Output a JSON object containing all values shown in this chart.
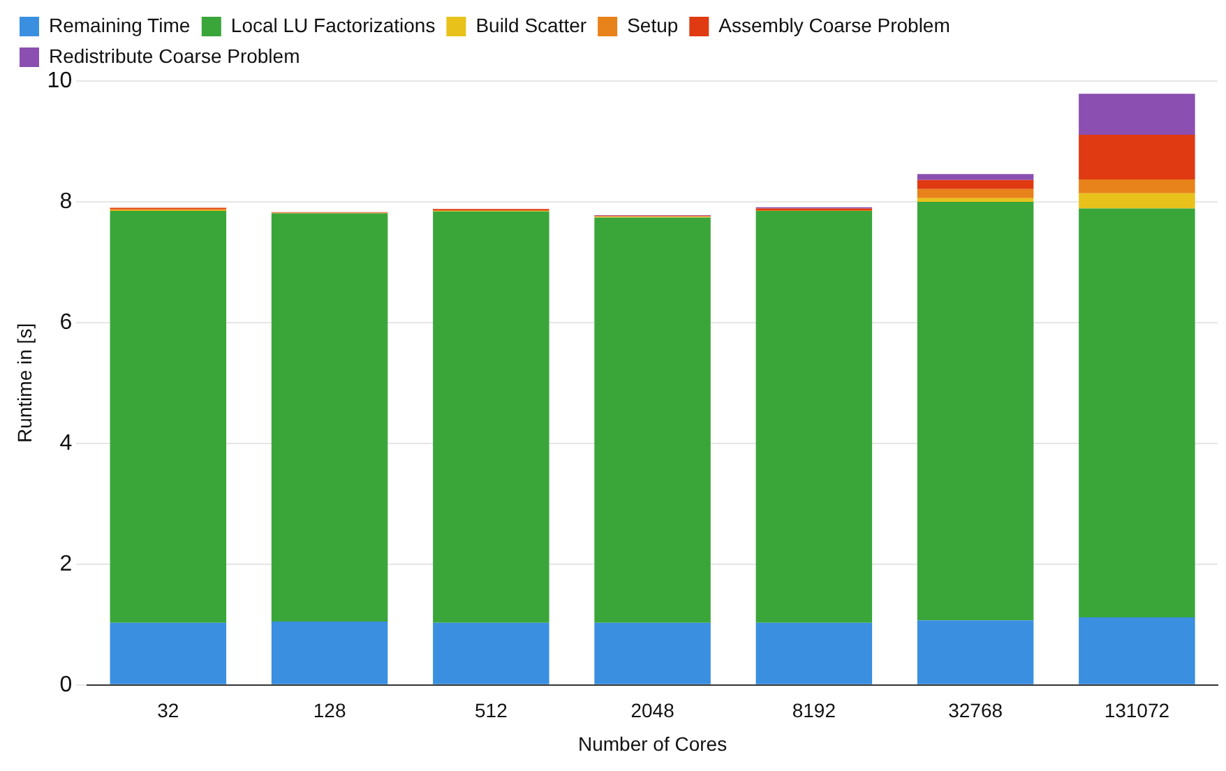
{
  "chart_data": {
    "type": "bar",
    "stacked": true,
    "xlabel": "Number of Cores",
    "ylabel": "Runtime in [s]",
    "categories": [
      "32",
      "128",
      "512",
      "2048",
      "8192",
      "32768",
      "131072"
    ],
    "series": [
      {
        "name": "Remaining Time",
        "color": "#3a8fe0",
        "values": [
          1.03,
          1.05,
          1.03,
          1.03,
          1.03,
          1.07,
          1.12
        ]
      },
      {
        "name": "Local LU Factorizations",
        "color": "#3aa63a",
        "values": [
          6.82,
          6.76,
          6.81,
          6.71,
          6.82,
          6.93,
          6.77
        ]
      },
      {
        "name": "Build Scatter",
        "color": "#e8c21a",
        "values": [
          0.01,
          0,
          0.01,
          0.01,
          0,
          0.06,
          0.25
        ]
      },
      {
        "name": "Setup",
        "color": "#e8821a",
        "values": [
          0.02,
          0.01,
          0.01,
          0.01,
          0.01,
          0.15,
          0.23
        ]
      },
      {
        "name": "Assembly Coarse Problem",
        "color": "#e03a12",
        "values": [
          0.02,
          0.01,
          0.02,
          0.01,
          0.03,
          0.15,
          0.74
        ]
      },
      {
        "name": "Redistribute Coarse Problem",
        "color": "#8a4fb0",
        "values": [
          0,
          0,
          0,
          0.01,
          0.02,
          0.1,
          0.68
        ]
      }
    ],
    "ylim": [
      0,
      10
    ],
    "yticks": [
      0,
      2,
      4,
      6,
      8,
      10
    ],
    "grid": "y",
    "legend": "top"
  }
}
